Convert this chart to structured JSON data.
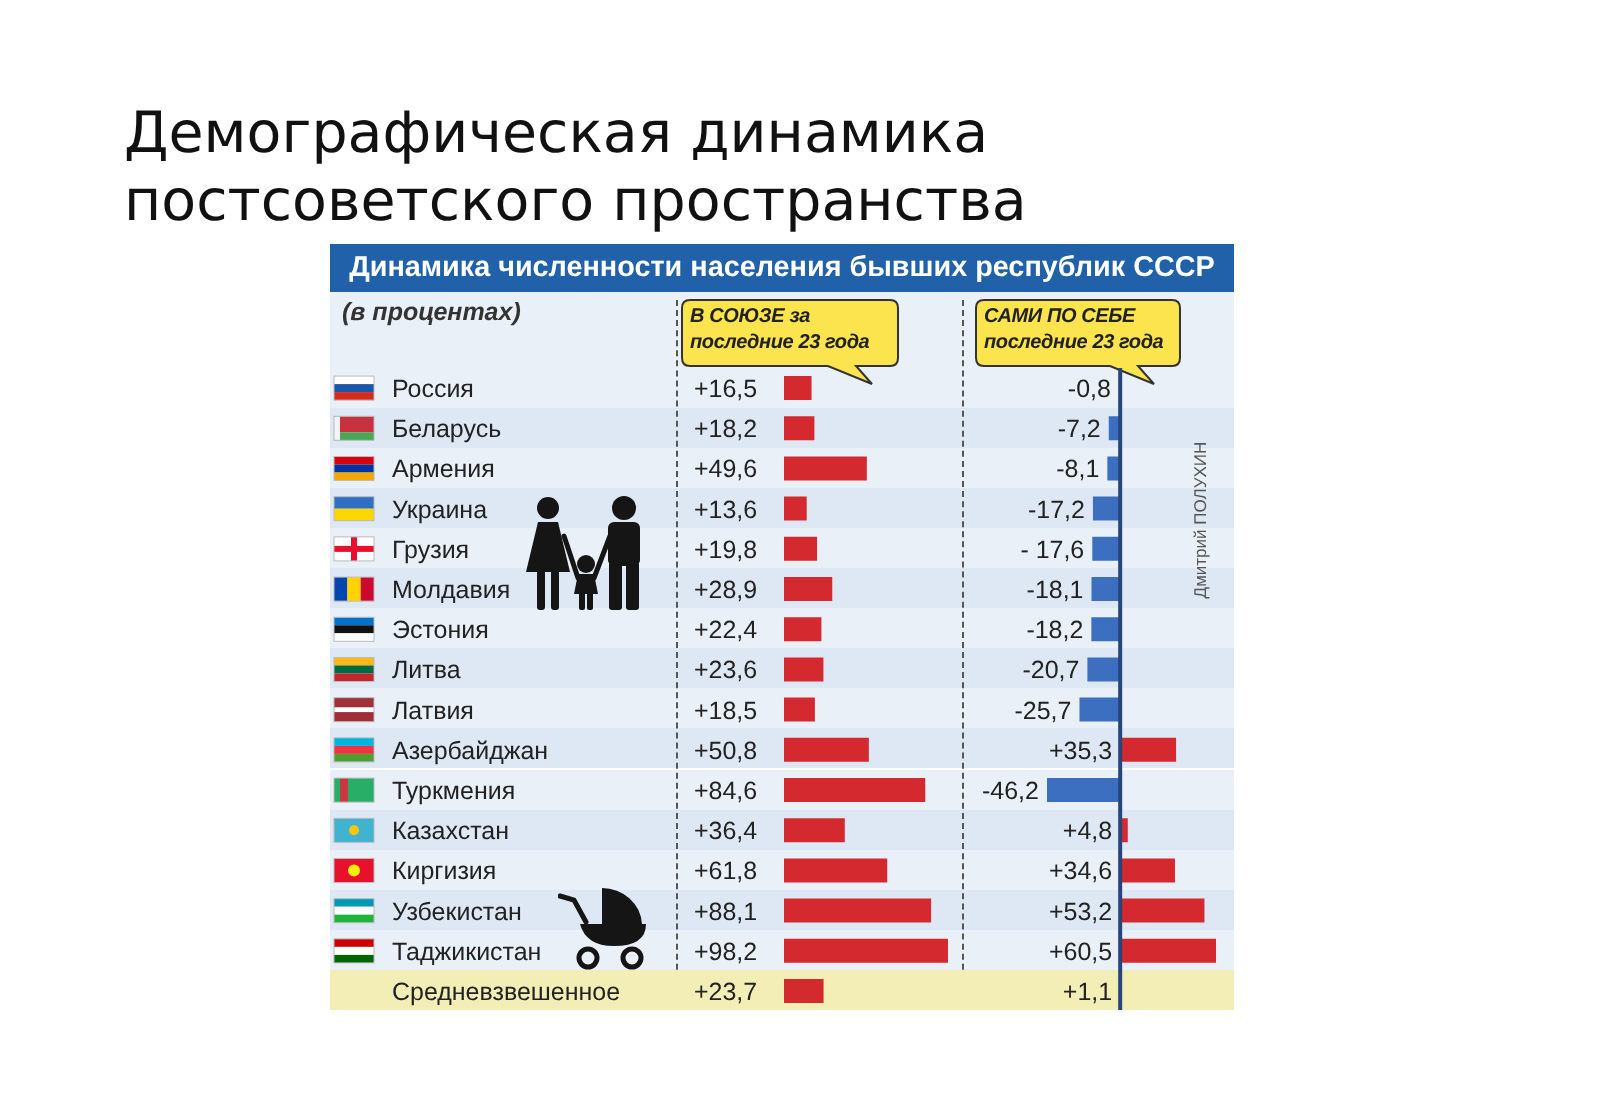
{
  "chart_data": [
    {
      "type": "bar",
      "orientation": "horizontal",
      "title": "Демографическая динамика постсоветского пространства",
      "subtitle": "Динамика численности населения бывших республик СССР",
      "xlabel": "В СОЮЗЕ за последние 23 года",
      "annotations": [
        "(в процентах)"
      ],
      "categories": [
        "Россия",
        "Беларусь",
        "Армения",
        "Украина",
        "Грузия",
        "Молдавия",
        "Эстония",
        "Литва",
        "Латвия",
        "Азербайджан",
        "Туркмения",
        "Казахстан",
        "Киргизия",
        "Узбекистан",
        "Таджикистан",
        "Средневзвешенное"
      ],
      "values": [
        16.5,
        18.2,
        49.6,
        13.6,
        19.8,
        28.9,
        22.4,
        23.6,
        18.5,
        50.8,
        84.6,
        36.4,
        61.8,
        88.1,
        98.2,
        23.7
      ],
      "value_labels": [
        "+16,5",
        "+18,2",
        "+49,6",
        "+13,6",
        "+19,8",
        "+28,9",
        "+22,4",
        "+23,6",
        "+18,5",
        "+50,8",
        "+84,6",
        "+36,4",
        "+61,8",
        "+88,1",
        "+98,2",
        "+23,7"
      ],
      "color": "#d42a2f",
      "bands": [
        {
          "axis": "y",
          "from": "Средневзвешенное",
          "to": "Средневзвешенное",
          "color": "#f3eeb5"
        }
      ],
      "tick_labels": "y"
    },
    {
      "type": "bar",
      "orientation": "horizontal",
      "xlabel": "САМИ ПО СЕБЕ последние 23 года",
      "annotations": [
        "Дмитрий ПОЛУХИН"
      ],
      "categories": [
        "Россия",
        "Беларусь",
        "Армения",
        "Украина",
        "Грузия",
        "Молдавия",
        "Эстония",
        "Литва",
        "Латвия",
        "Азербайджан",
        "Туркмения",
        "Казахстан",
        "Киргизия",
        "Узбекистан",
        "Таджикистан",
        "Средневзвешенное"
      ],
      "values": [
        -0.8,
        -7.2,
        -8.1,
        -17.2,
        -17.6,
        -18.1,
        -18.2,
        -20.7,
        -25.7,
        35.3,
        -46.2,
        4.8,
        34.6,
        53.2,
        60.5,
        1.1
      ],
      "value_labels": [
        "-0,8",
        "-7,2",
        "-8,1",
        "-17,2",
        "- 17,6",
        "-18,1",
        "-18,2",
        "-20,7",
        "-25,7",
        "+35,3",
        "-46,2",
        "+4,8",
        "+34,6",
        "+53,2",
        "+60,5",
        "+1,1"
      ],
      "colors": [
        "#3d6fc0",
        "#3d6fc0",
        "#3d6fc0",
        "#3d6fc0",
        "#3d6fc0",
        "#3d6fc0",
        "#3d6fc0",
        "#3d6fc0",
        "#3d6fc0",
        "#d42a2f",
        "#3d6fc0",
        "#d42a2f",
        "#d42a2f",
        "#d42a2f",
        "#d42a2f",
        "#d42a2f"
      ],
      "ref_lines": [
        {
          "axis": "x",
          "value": 0,
          "color": "#27457a"
        }
      ],
      "bands": [
        {
          "axis": "y",
          "from": "Средневзвешенное",
          "to": "Средневзвешенное",
          "color": "#f3eeb5"
        }
      ],
      "tick_labels": false
    }
  ]
}
